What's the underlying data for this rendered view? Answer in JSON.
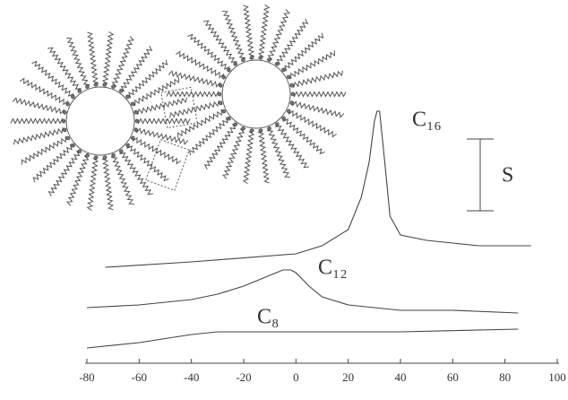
{
  "chart_data": {
    "type": "line",
    "xlim": [
      -80,
      100
    ],
    "xticks": [
      -80,
      -60,
      -40,
      -20,
      0,
      20,
      40,
      60,
      80,
      100
    ],
    "ylim": [
      0,
      100
    ],
    "scale_label": "S",
    "series": [
      {
        "name": "C₁₆",
        "color": "#444444",
        "x": [
          -73,
          -40,
          0,
          10,
          20,
          25,
          28,
          30,
          31,
          32,
          34,
          36,
          40,
          50,
          60,
          70,
          90
        ],
        "values": [
          34,
          36,
          39,
          42,
          48,
          60,
          73,
          88,
          92,
          92,
          73,
          53,
          46,
          44,
          43,
          42,
          42
        ]
      },
      {
        "name": "C₁₂",
        "color": "#444444",
        "x": [
          -80,
          -60,
          -40,
          -30,
          -20,
          -10,
          -5,
          -2,
          0,
          5,
          10,
          20,
          40,
          60,
          85
        ],
        "values": [
          19,
          20,
          22,
          24,
          27,
          31,
          33,
          33,
          32,
          27,
          23,
          20,
          18,
          18,
          17
        ]
      },
      {
        "name": "C₈",
        "color": "#444444",
        "x": [
          -80,
          -60,
          -40,
          -30,
          0,
          40,
          85
        ],
        "values": [
          4,
          6,
          9,
          10,
          10,
          10,
          11
        ]
      }
    ]
  }
}
